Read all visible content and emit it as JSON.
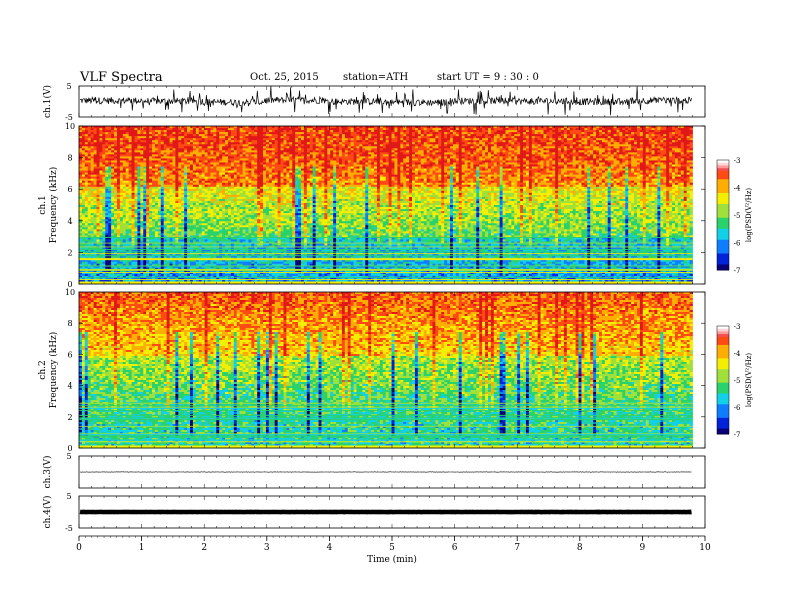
{
  "header": {
    "title": "VLF  Spectra",
    "date": "Oct. 25, 2015",
    "station": "station=ATH",
    "start": "start  UT  =   9  : 30 : 0"
  },
  "chart_data": [
    {
      "id": "ch1-waveform",
      "type": "line",
      "ylabel": "ch.1(V)",
      "ylim": [
        -5,
        5
      ],
      "yticks": [
        "5",
        "-5"
      ],
      "series": [
        {
          "values": [
            0.3,
            0.1,
            -0.2,
            0.4,
            0.0,
            -0.3,
            0.2,
            0.1,
            -0.1,
            0.3
          ]
        }
      ]
    },
    {
      "id": "ch1-spectrogram",
      "type": "heatmap",
      "ylabel": "Frequency  (kHz)",
      "channel_label": "ch.1",
      "ylim": [
        0,
        10
      ],
      "yticks": [
        "0",
        "2",
        "4",
        "6",
        "8",
        "10"
      ],
      "colorbar": {
        "label": "log(PSD(V²/Hz)",
        "range": [
          -7,
          -3
        ],
        "ticks": [
          "-3",
          "-4",
          "-5",
          "-6",
          "-7"
        ]
      }
    },
    {
      "id": "ch2-spectrogram",
      "type": "heatmap",
      "ylabel": "Frequency  (kHz)",
      "channel_label": "ch.2",
      "ylim": [
        0,
        10
      ],
      "yticks": [
        "0",
        "2",
        "4",
        "6",
        "8",
        "10"
      ],
      "colorbar": {
        "label": "log(PSD(V²/Hz)",
        "range": [
          -7,
          -3
        ],
        "ticks": [
          "-3",
          "-4",
          "-5",
          "-6",
          "-7"
        ]
      }
    },
    {
      "id": "ch3-waveform",
      "type": "line",
      "ylabel": "ch.3(V)",
      "ylim": [
        -5,
        5
      ],
      "yticks": [
        "5"
      ],
      "series": [
        {
          "values": [
            0.0,
            0.0,
            0.0,
            0.0,
            0.0,
            0.0,
            0.0,
            0.0,
            0.0,
            0.0
          ]
        }
      ]
    },
    {
      "id": "ch4-waveform",
      "type": "line",
      "ylabel": "ch.4(V)",
      "ylim": [
        -5,
        5
      ],
      "yticks": [
        "5",
        "-5"
      ],
      "series": [
        {
          "values": [
            0.0,
            0.0,
            0.0,
            0.0,
            0.0,
            0.0,
            0.0,
            0.0,
            0.0,
            0.0
          ]
        }
      ]
    }
  ],
  "xaxis": {
    "label": "Time  (min)",
    "ticks": [
      "0",
      "1",
      "2",
      "3",
      "4",
      "5",
      "6",
      "7",
      "8",
      "9",
      "10"
    ],
    "range": [
      0,
      10
    ],
    "data_end": 9.8
  },
  "colors": {
    "scale": [
      "#0a0078",
      "#0022d8",
      "#0f7dff",
      "#12d0e8",
      "#2ad26b",
      "#9fe03a",
      "#f4ef00",
      "#ffae00",
      "#ff4a14",
      "#e01818"
    ]
  }
}
